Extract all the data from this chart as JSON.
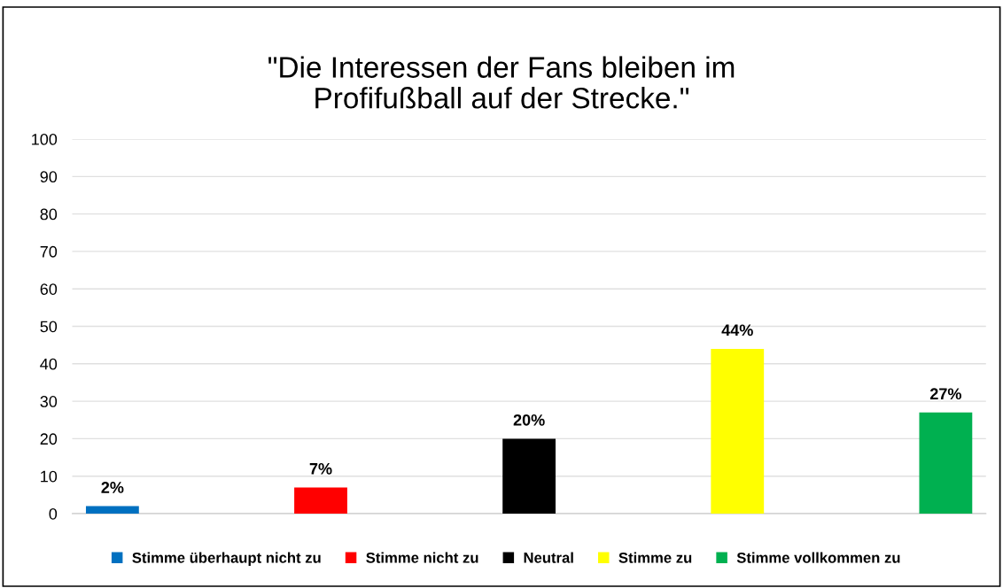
{
  "chart_data": {
    "type": "bar",
    "title": "\"Die Interessen der Fans bleiben im\nProfifußball auf der Strecke.\"",
    "categories": [
      null
    ],
    "series": [
      {
        "name": "Stimme überhaupt nicht zu",
        "color": "#0070c0",
        "values": [
          2
        ],
        "value_labels": [
          "2%"
        ]
      },
      {
        "name": "Stimme nicht zu",
        "color": "#ff0000",
        "values": [
          7
        ],
        "value_labels": [
          "7%"
        ]
      },
      {
        "name": "Neutral",
        "color": "#000000",
        "values": [
          20
        ],
        "value_labels": [
          "20%"
        ]
      },
      {
        "name": "Stimme zu",
        "color": "#ffff00",
        "values": [
          44
        ],
        "value_labels": [
          "44%"
        ]
      },
      {
        "name": "Stimme vollkommen zu",
        "color": "#00b050",
        "values": [
          27
        ],
        "value_labels": [
          "27%"
        ]
      }
    ],
    "ylim": [
      0,
      100
    ],
    "yticks": [
      0,
      10,
      20,
      30,
      40,
      50,
      60,
      70,
      80,
      90,
      100
    ],
    "grid": "y",
    "legend": "bottom"
  }
}
